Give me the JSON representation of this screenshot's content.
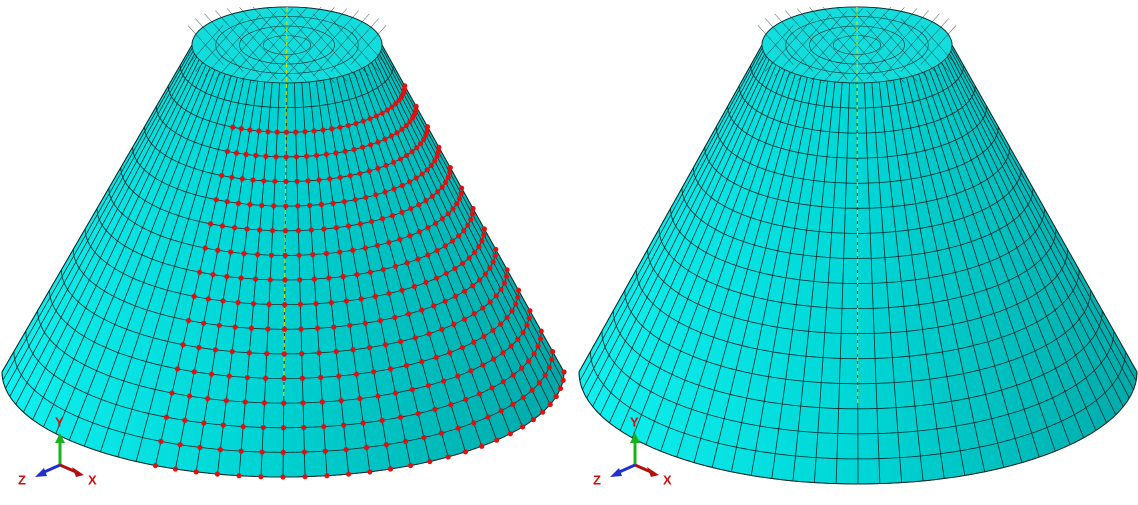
{
  "panels": [
    {
      "triad": {
        "y": "Y",
        "z": "Z",
        "x": "X"
      }
    },
    {
      "triad": {
        "y": "Y",
        "z": "Z",
        "x": "X"
      }
    }
  ]
}
